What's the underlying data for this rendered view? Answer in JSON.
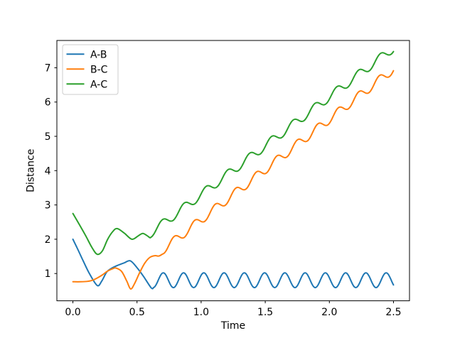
{
  "figure": {
    "background": "#ffffff",
    "kind": "matplotlib-line-plot"
  },
  "chart_data": {
    "type": "line",
    "title": "",
    "xlabel": "Time",
    "ylabel": "Distance",
    "xlim": [
      -0.125,
      2.625
    ],
    "ylim": [
      0.205,
      7.795
    ],
    "grid": false,
    "xticks": {
      "values": [
        0.0,
        0.5,
        1.0,
        1.5,
        2.0,
        2.5
      ],
      "labels": [
        "0.0",
        "0.5",
        "1.0",
        "1.5",
        "2.0",
        "2.5"
      ]
    },
    "yticks": {
      "values": [
        1,
        2,
        3,
        4,
        5,
        6,
        7
      ],
      "labels": [
        "1",
        "2",
        "3",
        "4",
        "5",
        "6",
        "7"
      ]
    },
    "legend": {
      "position": "upper left",
      "entries": [
        "A-B",
        "B-C",
        "A-C"
      ],
      "border_color": "#cccccc",
      "background": "#ffffff"
    },
    "series": [
      {
        "name": "A-B",
        "color": "#1f77b4",
        "anchor_points": [
          [
            0.0,
            2.0
          ],
          [
            0.04,
            1.69
          ],
          [
            0.08,
            1.37
          ],
          [
            0.13,
            0.99
          ],
          [
            0.19,
            0.65
          ],
          [
            0.225,
            0.78
          ],
          [
            0.263,
            1.04
          ],
          [
            0.3,
            1.15
          ],
          [
            0.35,
            1.24
          ],
          [
            0.4,
            1.31
          ],
          [
            0.448,
            1.37
          ],
          [
            0.5,
            1.17
          ],
          [
            0.55,
            0.92
          ],
          [
            0.611,
            0.58
          ]
        ],
        "oscillation": {
          "t_start": 0.63,
          "t_end": 2.5,
          "base": 0.805,
          "base_t": 0.705,
          "slope": 0.0,
          "amplitude": 0.215,
          "period": 0.158,
          "phase_t0": 0.6655
        }
      },
      {
        "name": "B-C",
        "color": "#ff7f0e",
        "anchor_points": [
          [
            0.0,
            0.76
          ],
          [
            0.06,
            0.76
          ],
          [
            0.11,
            0.77
          ],
          [
            0.15,
            0.8
          ],
          [
            0.19,
            0.87
          ],
          [
            0.23,
            0.96
          ],
          [
            0.27,
            1.07
          ],
          [
            0.31,
            1.14
          ],
          [
            0.335,
            1.16
          ],
          [
            0.38,
            1.06
          ],
          [
            0.42,
            0.78
          ],
          [
            0.45,
            0.55
          ],
          [
            0.48,
            0.7
          ],
          [
            0.52,
            1.02
          ],
          [
            0.56,
            1.3
          ],
          [
            0.6,
            1.47
          ],
          [
            0.64,
            1.52
          ],
          [
            0.67,
            1.51
          ]
        ],
        "oscillation": {
          "t_start": 0.7,
          "t_end": 2.5,
          "base": 2.07,
          "base_t": 0.83,
          "slope": 2.93,
          "amplitude": 0.13,
          "period": 0.16,
          "phase_t0": 0.75
        }
      },
      {
        "name": "A-C",
        "color": "#2ca02c",
        "anchor_points": [
          [
            0.0,
            2.75
          ],
          [
            0.05,
            2.43
          ],
          [
            0.1,
            2.1
          ],
          [
            0.15,
            1.75
          ],
          [
            0.19,
            1.56
          ],
          [
            0.23,
            1.66
          ],
          [
            0.27,
            1.99
          ],
          [
            0.31,
            2.22
          ],
          [
            0.345,
            2.31
          ],
          [
            0.4,
            2.18
          ],
          [
            0.46,
            2.0
          ],
          [
            0.51,
            2.1
          ],
          [
            0.545,
            2.17
          ],
          [
            0.58,
            2.1
          ]
        ],
        "oscillation": {
          "t_start": 0.6,
          "t_end": 2.5,
          "base": 2.56,
          "base_t": 0.74,
          "slope": 2.85,
          "amplitude": 0.13,
          "period": 0.17,
          "phase_t0": 0.655
        }
      }
    ]
  },
  "colors": {
    "spine": "#000000",
    "tick": "#000000",
    "text": "#000000",
    "background": "#ffffff"
  }
}
